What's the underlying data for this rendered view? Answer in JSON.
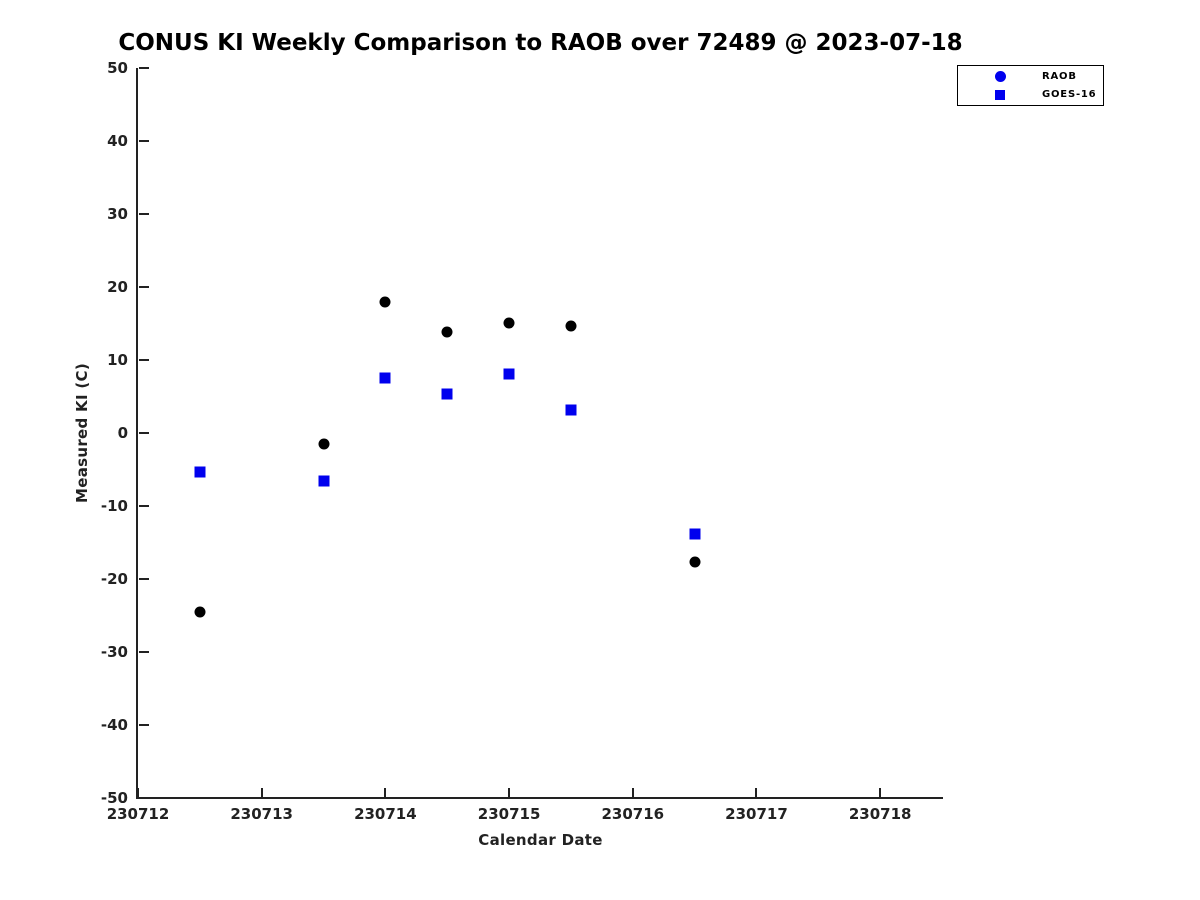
{
  "figure": {
    "background": "#ffffff",
    "axis_color": "#222222"
  },
  "chart_data": {
    "type": "scatter",
    "title": "CONUS KI Weekly Comparison to RAOB over 72489 @ 2023-07-18",
    "xlabel": "Calendar Date",
    "ylabel": "Measured KI (C)",
    "xlim": [
      230712,
      230718.508
    ],
    "ylim": [
      -50,
      50
    ],
    "xticks": [
      230712,
      230713,
      230714,
      230715,
      230716,
      230717,
      230718
    ],
    "yticks": [
      -50,
      -40,
      -30,
      -20,
      -10,
      0,
      10,
      20,
      30,
      40,
      50
    ],
    "grid": false,
    "legend_position": "top-right",
    "series": [
      {
        "name": "RAOB",
        "marker": "circle",
        "point_color": "#000000",
        "legend_color": "#0000EE",
        "x": [
          230712.5,
          230713.5,
          230714.0,
          230714.5,
          230715.0,
          230715.5,
          230716.5
        ],
        "y": [
          -24.5,
          -1.5,
          18.0,
          13.9,
          15.1,
          14.7,
          -17.7
        ]
      },
      {
        "name": "GOES-16",
        "marker": "square",
        "point_color": "#0000EE",
        "legend_color": "#0000EE",
        "x": [
          230712.5,
          230713.5,
          230714.0,
          230714.5,
          230715.0,
          230715.5,
          230716.5
        ],
        "y": [
          -5.4,
          -6.6,
          7.6,
          5.4,
          8.1,
          3.1,
          -13.9
        ]
      }
    ]
  }
}
